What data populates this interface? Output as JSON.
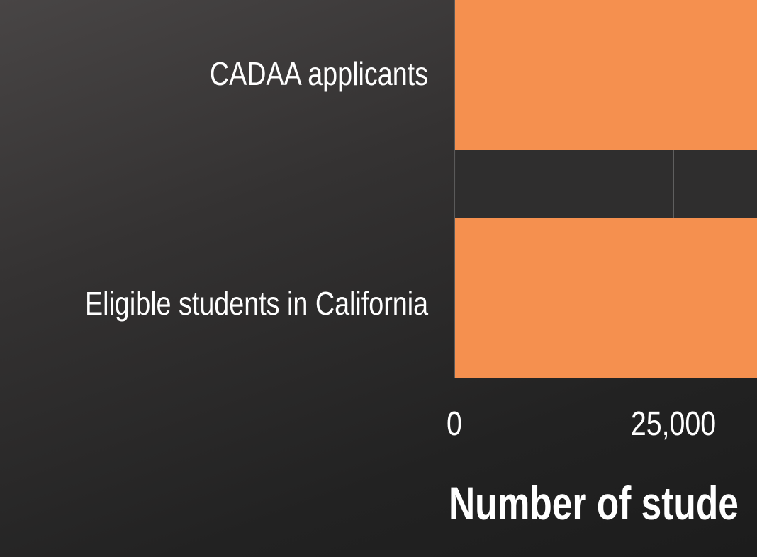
{
  "chart_data": {
    "type": "bar",
    "orientation": "horizontal",
    "categories": [
      "CADAA applicants",
      "Eligible students in California"
    ],
    "values": [
      null,
      null
    ],
    "xlabel": "Number of stude",
    "x_ticks": [
      "0",
      "25,000"
    ],
    "grid": true,
    "colors": {
      "bar": "#f5904f",
      "gridline": "#5a5a5a",
      "text": "#ffffff"
    }
  }
}
